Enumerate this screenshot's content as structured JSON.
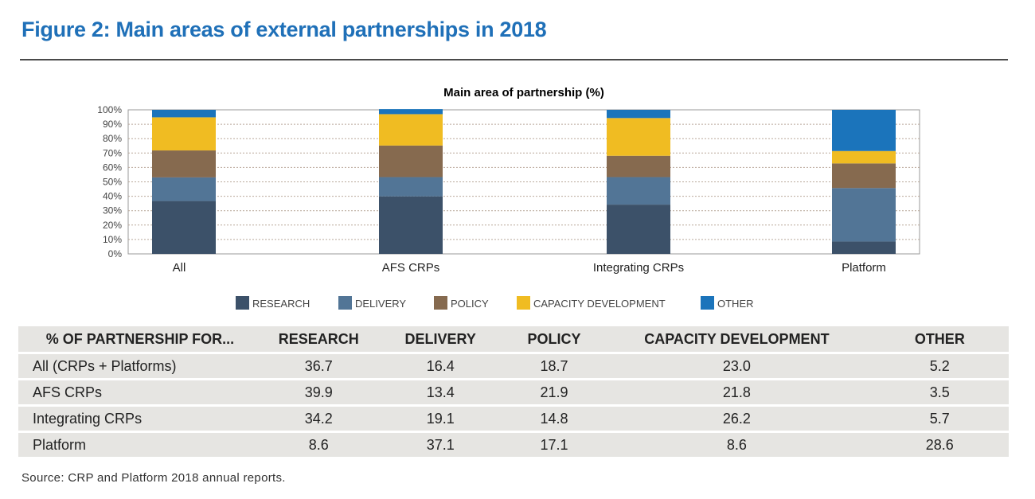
{
  "figure_title": "Figure 2: Main areas of external partnerships in 2018",
  "chart_data": {
    "type": "bar",
    "stacked": true,
    "title": "Main area of partnership (%)",
    "categories": [
      "All",
      "AFS CRPs",
      "Integrating CRPs",
      "Platform"
    ],
    "series": [
      {
        "name": "RESEARCH",
        "color": "#3c5169",
        "values": [
          36.7,
          39.9,
          34.2,
          8.6
        ]
      },
      {
        "name": "DELIVERY",
        "color": "#527596",
        "values": [
          16.4,
          13.4,
          19.1,
          37.1
        ]
      },
      {
        "name": "POLICY",
        "color": "#866a4f",
        "values": [
          18.7,
          21.9,
          14.8,
          17.1
        ]
      },
      {
        "name": "CAPACITY DEVELOPMENT",
        "color": "#f0bc22",
        "values": [
          23.0,
          21.8,
          26.2,
          8.6
        ]
      },
      {
        "name": "OTHER",
        "color": "#1b74bb",
        "values": [
          5.2,
          3.5,
          5.7,
          28.6
        ]
      }
    ],
    "ylim": [
      0,
      100
    ],
    "yticks": [
      "0%",
      "10%",
      "20%",
      "30%",
      "40%",
      "50%",
      "60%",
      "70%",
      "80%",
      "90%",
      "100%"
    ],
    "grid": true,
    "legend": "bottom"
  },
  "table": {
    "headers": [
      "% OF PARTNERSHIP FOR...",
      "RESEARCH",
      "DELIVERY",
      "POLICY",
      "CAPACITY DEVELOPMENT",
      "OTHER"
    ],
    "rows": [
      [
        "All (CRPs + Platforms)",
        "36.7",
        "16.4",
        "18.7",
        "23.0",
        "5.2"
      ],
      [
        "AFS CRPs",
        "39.9",
        "13.4",
        "21.9",
        "21.8",
        "3.5"
      ],
      [
        "Integrating CRPs",
        "34.2",
        "19.1",
        "14.8",
        "26.2",
        "5.7"
      ],
      [
        "Platform",
        "8.6",
        "37.1",
        "17.1",
        "8.6",
        "28.6"
      ]
    ]
  },
  "source": "Source: CRP and Platform 2018 annual reports."
}
